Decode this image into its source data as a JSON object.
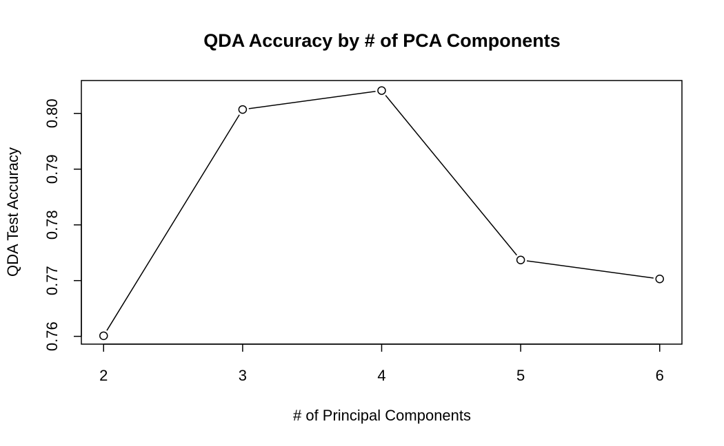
{
  "chart_data": {
    "type": "line",
    "title": "QDA Accuracy by # of PCA Components",
    "xlabel": "# of Principal Components",
    "ylabel": "QDA Test Accuracy",
    "x": [
      2,
      3,
      4,
      5,
      6
    ],
    "y": [
      0.7601,
      0.8007,
      0.8041,
      0.7737,
      0.7703
    ],
    "xticks": [
      2,
      3,
      4,
      5,
      6
    ],
    "xtick_labels": [
      "2",
      "3",
      "4",
      "5",
      "6"
    ],
    "yticks": [
      0.76,
      0.77,
      0.78,
      0.79,
      0.8
    ],
    "ytick_labels": [
      "0.76",
      "0.77",
      "0.78",
      "0.79",
      "0.80"
    ],
    "xlim": [
      1.84,
      6.16
    ],
    "ylim": [
      0.7586,
      0.8059
    ],
    "grid": false,
    "legend": "none",
    "marker": "open-circle",
    "line_color": "#000000"
  }
}
